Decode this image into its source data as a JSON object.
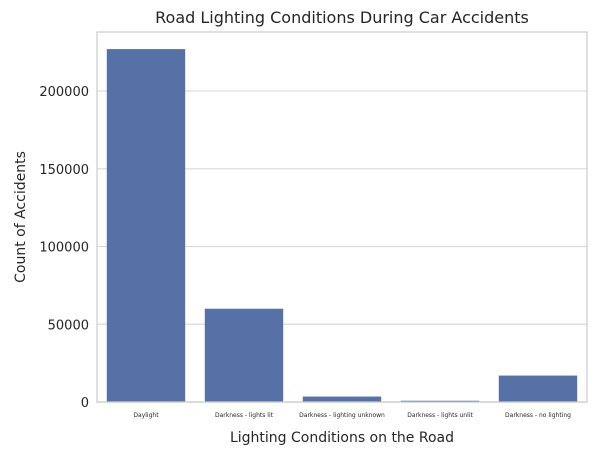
{
  "chart_data": {
    "type": "bar",
    "title": "Road Lighting Conditions During Car Accidents",
    "xlabel": "Lighting Conditions on the Road",
    "ylabel": "Count of Accidents",
    "categories": [
      "Daylight",
      "Darkness - lights lit",
      "Darkness - lighting unknown",
      "Darkness - lights unlit",
      "Darkness - no lighting"
    ],
    "values": [
      227000,
      60000,
      3500,
      800,
      17000
    ],
    "ylim": [
      0,
      238000
    ],
    "yticks": [
      0,
      50000,
      100000,
      150000,
      200000
    ],
    "ytick_labels": [
      "0",
      "50000",
      "100000",
      "150000",
      "200000"
    ],
    "grid": true,
    "bar_color": "#5571a6",
    "grid_color": "#d9d9d9",
    "frame_color": "#cccccc"
  }
}
